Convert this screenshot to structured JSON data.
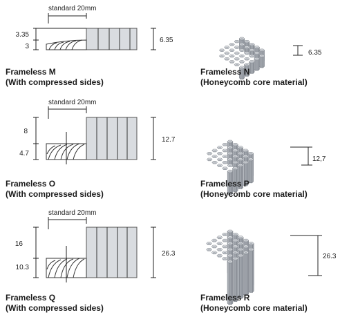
{
  "panels": [
    {
      "id": "M",
      "title": "Frameless M",
      "subtitle": "(With compressed sides)",
      "standard_label": "standard 20mm",
      "dims": {
        "upper": "3.35",
        "lower": "3",
        "total": "6.35"
      }
    },
    {
      "id": "N",
      "title": "Frameless N",
      "subtitle": "(Honeycomb core material)",
      "dims": {
        "height": "6.35"
      }
    },
    {
      "id": "O",
      "title": "Frameless O",
      "subtitle": "(With compressed sides)",
      "standard_label": "standard 20mm",
      "dims": {
        "upper": "8",
        "lower": "4.7",
        "total": "12.7"
      }
    },
    {
      "id": "P",
      "title": "Frameless P",
      "subtitle": "(Honeycomb core material)",
      "dims": {
        "height": "12,7"
      }
    },
    {
      "id": "Q",
      "title": "Frameless Q",
      "subtitle": "(With compressed sides)",
      "standard_label": "standard 20mm",
      "dims": {
        "upper": "16",
        "lower": "10.3",
        "total": "26.3"
      }
    },
    {
      "id": "R",
      "title": "Frameless R",
      "subtitle": "(Honeycomb core material)",
      "dims": {
        "height": "26.3"
      }
    }
  ],
  "colors": {
    "core_fill": "#d9dce0",
    "core_stroke": "#555555",
    "hex_top": "#e4e6e9",
    "hex_side": "#b8bcc2",
    "hex_side_dark": "#9ea3aa",
    "line": "#222222"
  }
}
